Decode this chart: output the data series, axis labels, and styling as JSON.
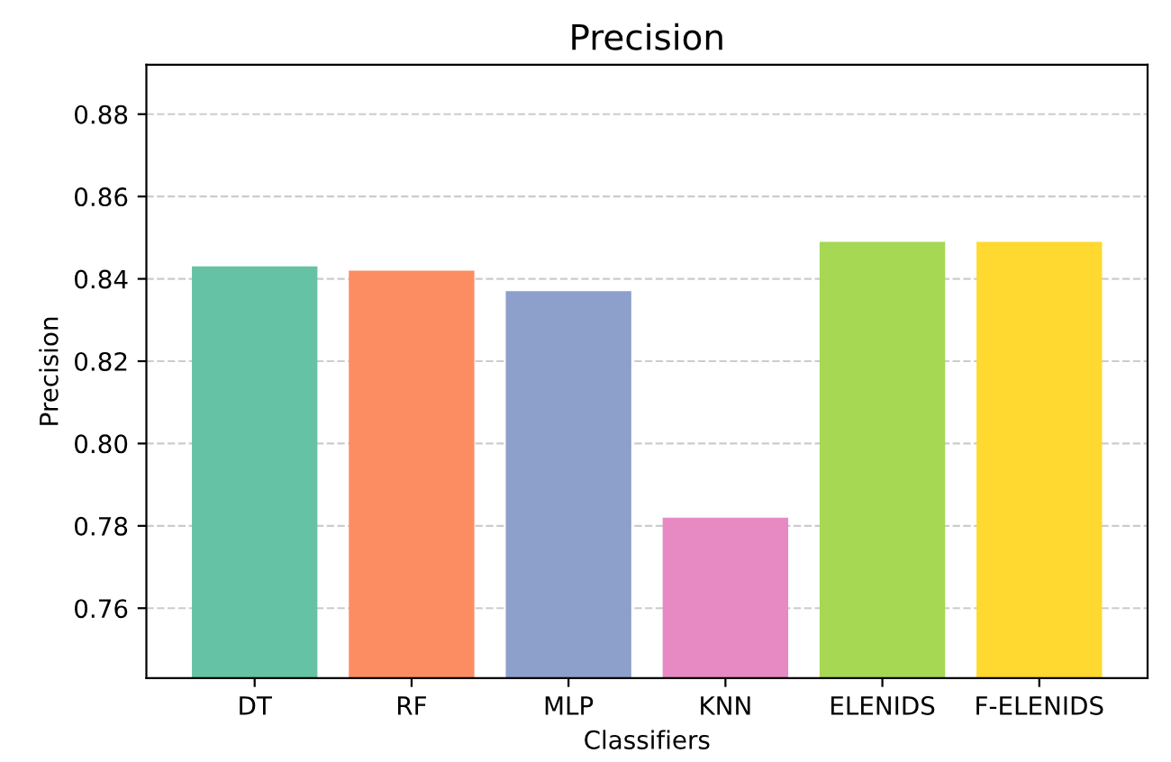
{
  "chart_data": {
    "type": "bar",
    "title": "Precision",
    "xlabel": "Classifiers",
    "ylabel": "Precision",
    "categories": [
      "DT",
      "RF",
      "MLP",
      "KNN",
      "ELENIDS",
      "F-ELENIDS"
    ],
    "values": [
      0.843,
      0.842,
      0.837,
      0.782,
      0.849,
      0.849
    ],
    "colors": [
      "#66c2a5",
      "#fc8d62",
      "#8da0cb",
      "#e78ac3",
      "#a6d854",
      "#ffd92f"
    ],
    "ylim": [
      0.743,
      0.892
    ],
    "yticks": [
      0.76,
      0.78,
      {
        "value": 0.8,
        "label": "0.80"
      },
      0.82,
      0.84,
      0.86,
      0.88
    ],
    "grid": "y"
  }
}
